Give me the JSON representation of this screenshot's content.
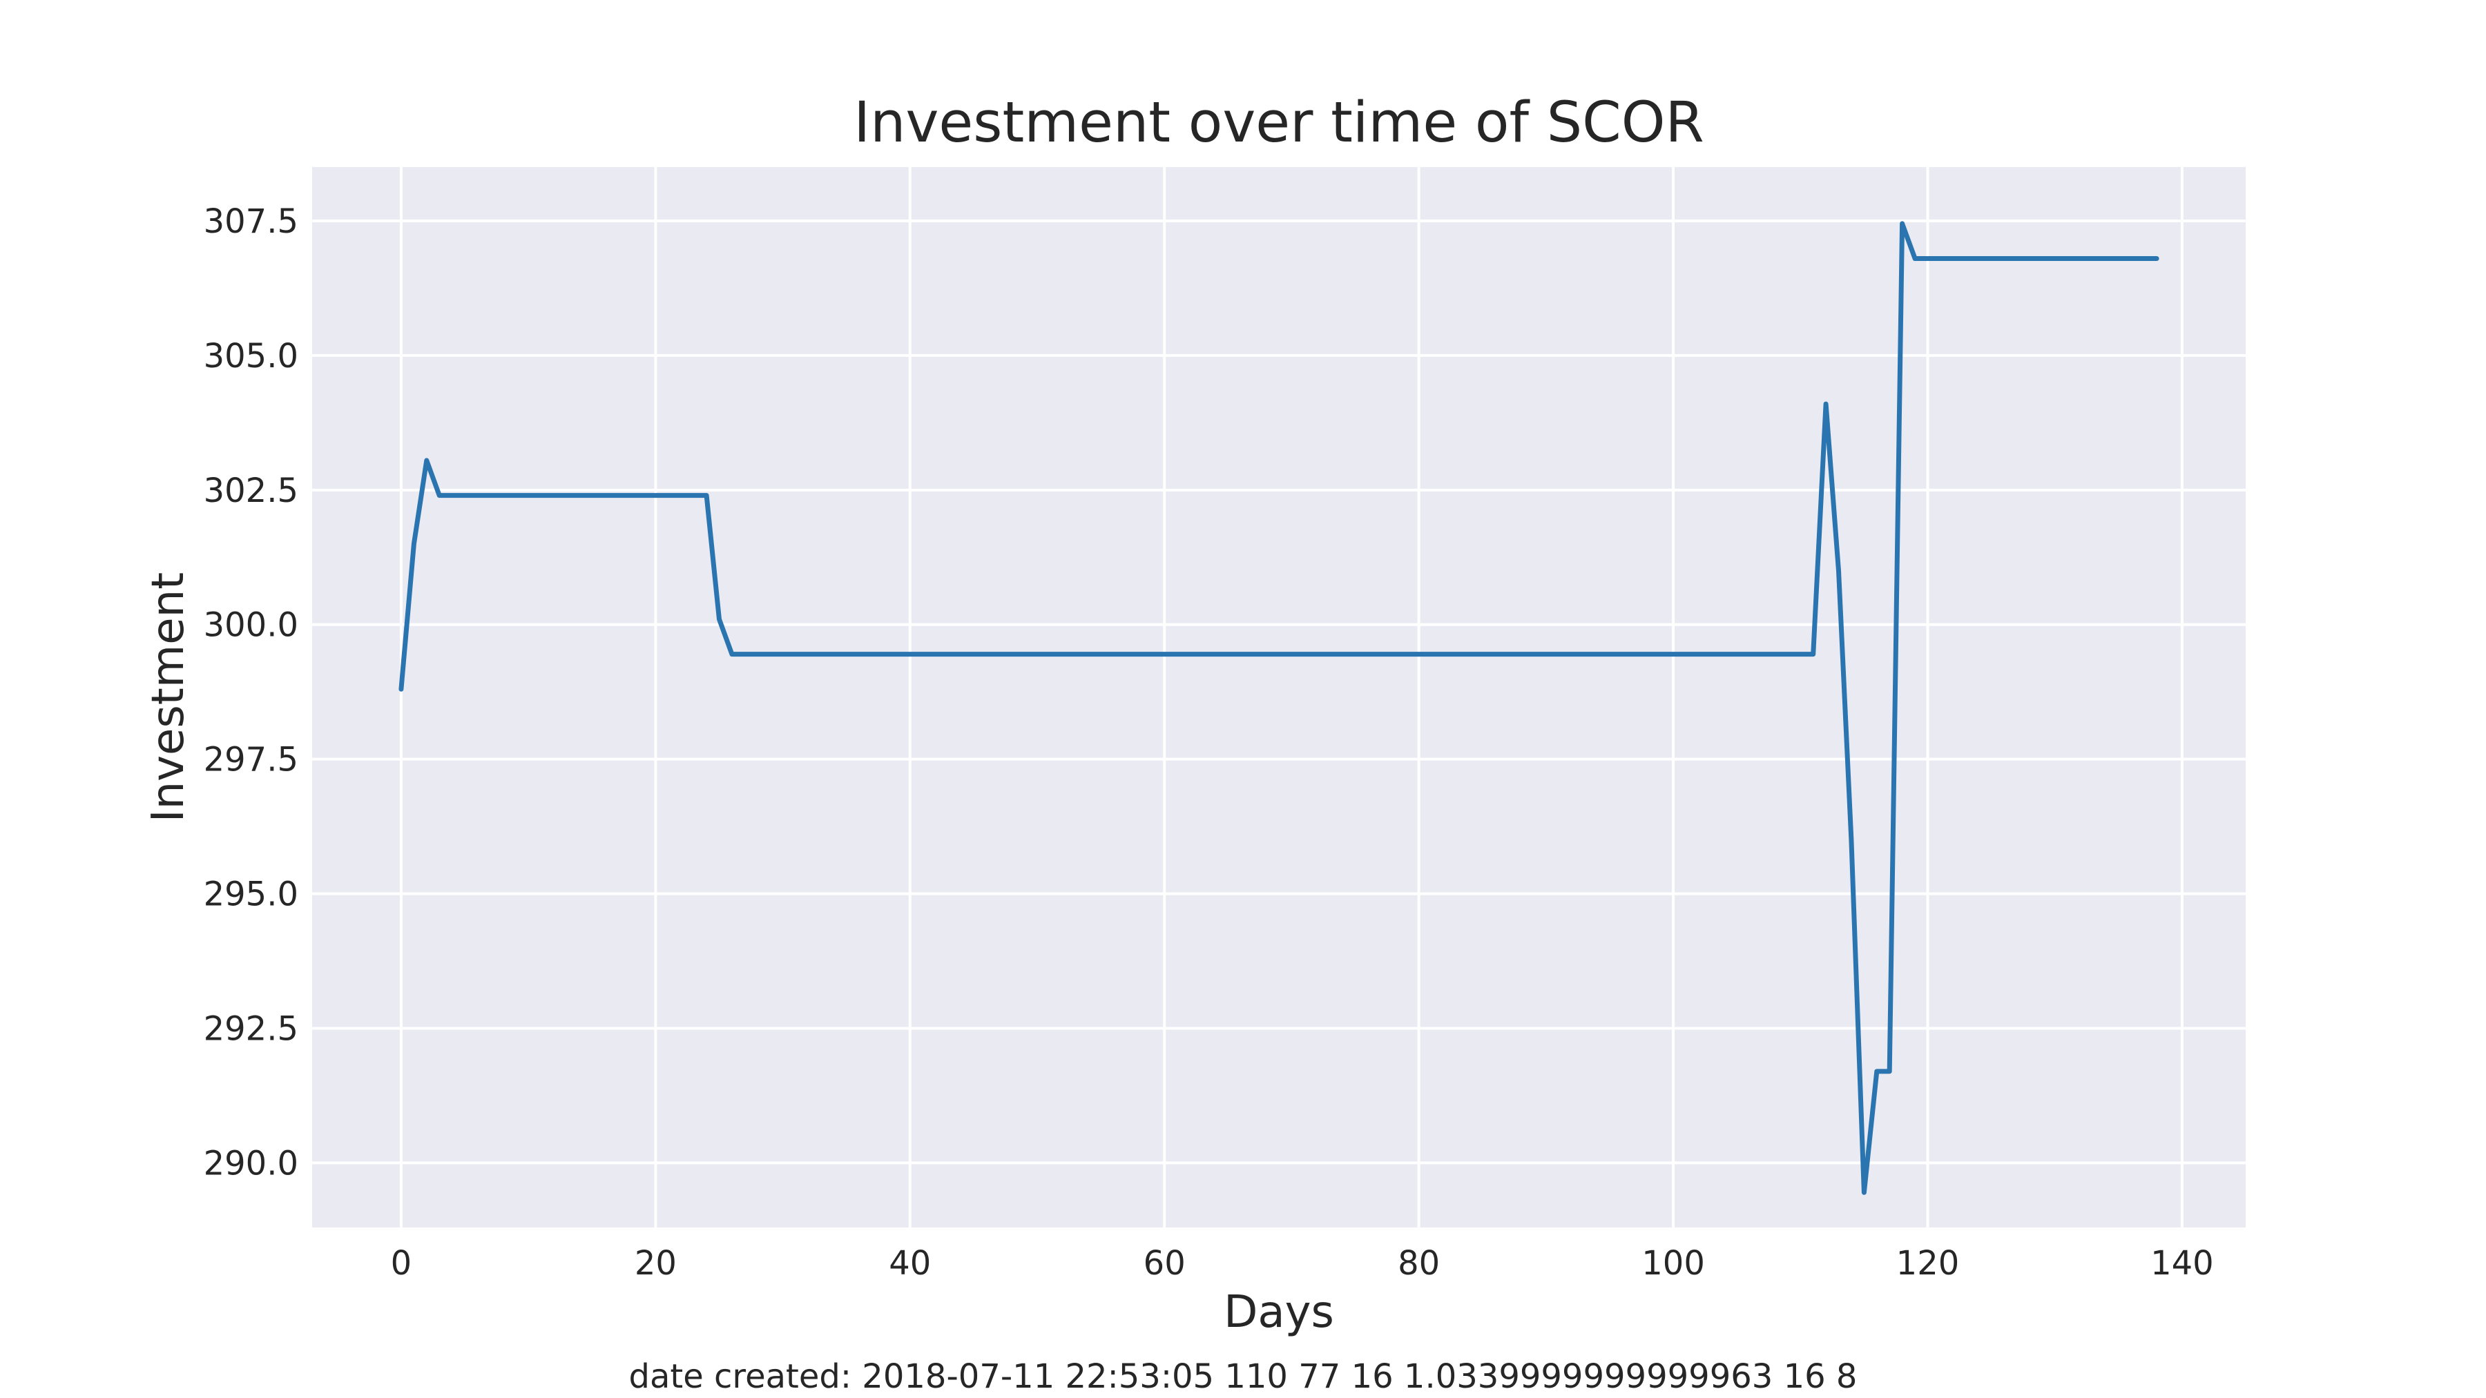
{
  "chart_data": {
    "type": "line",
    "title": "Investment over time of SCOR",
    "xlabel": "Days",
    "ylabel": "Investment",
    "footnote": "date created: 2018-07-11 22:53:05 110 77 16 1.0339999999999963 16 8",
    "xlim": [
      -7,
      145
    ],
    "ylim": [
      288.8,
      308.5
    ],
    "xticks": [
      0,
      20,
      40,
      60,
      80,
      100,
      120,
      140
    ],
    "yticks": [
      290.0,
      292.5,
      295.0,
      297.5,
      300.0,
      302.5,
      305.0,
      307.5
    ],
    "grid": true,
    "colors": {
      "background": "#eaeaf2",
      "grid": "#ffffff",
      "series": "#2a75b0"
    },
    "series": [
      {
        "x": [
          0,
          1,
          2,
          3,
          4,
          10,
          20,
          24,
          25,
          26,
          30,
          60,
          90,
          111,
          112,
          113,
          114,
          115,
          116,
          117,
          118,
          119,
          125,
          138
        ],
        "y": [
          298.8,
          301.5,
          303.05,
          302.4,
          302.4,
          302.4,
          302.4,
          302.4,
          300.1,
          299.45,
          299.45,
          299.45,
          299.45,
          299.45,
          304.1,
          301.0,
          296.0,
          289.45,
          291.7,
          291.7,
          307.45,
          306.8,
          306.8,
          306.8
        ]
      }
    ]
  }
}
